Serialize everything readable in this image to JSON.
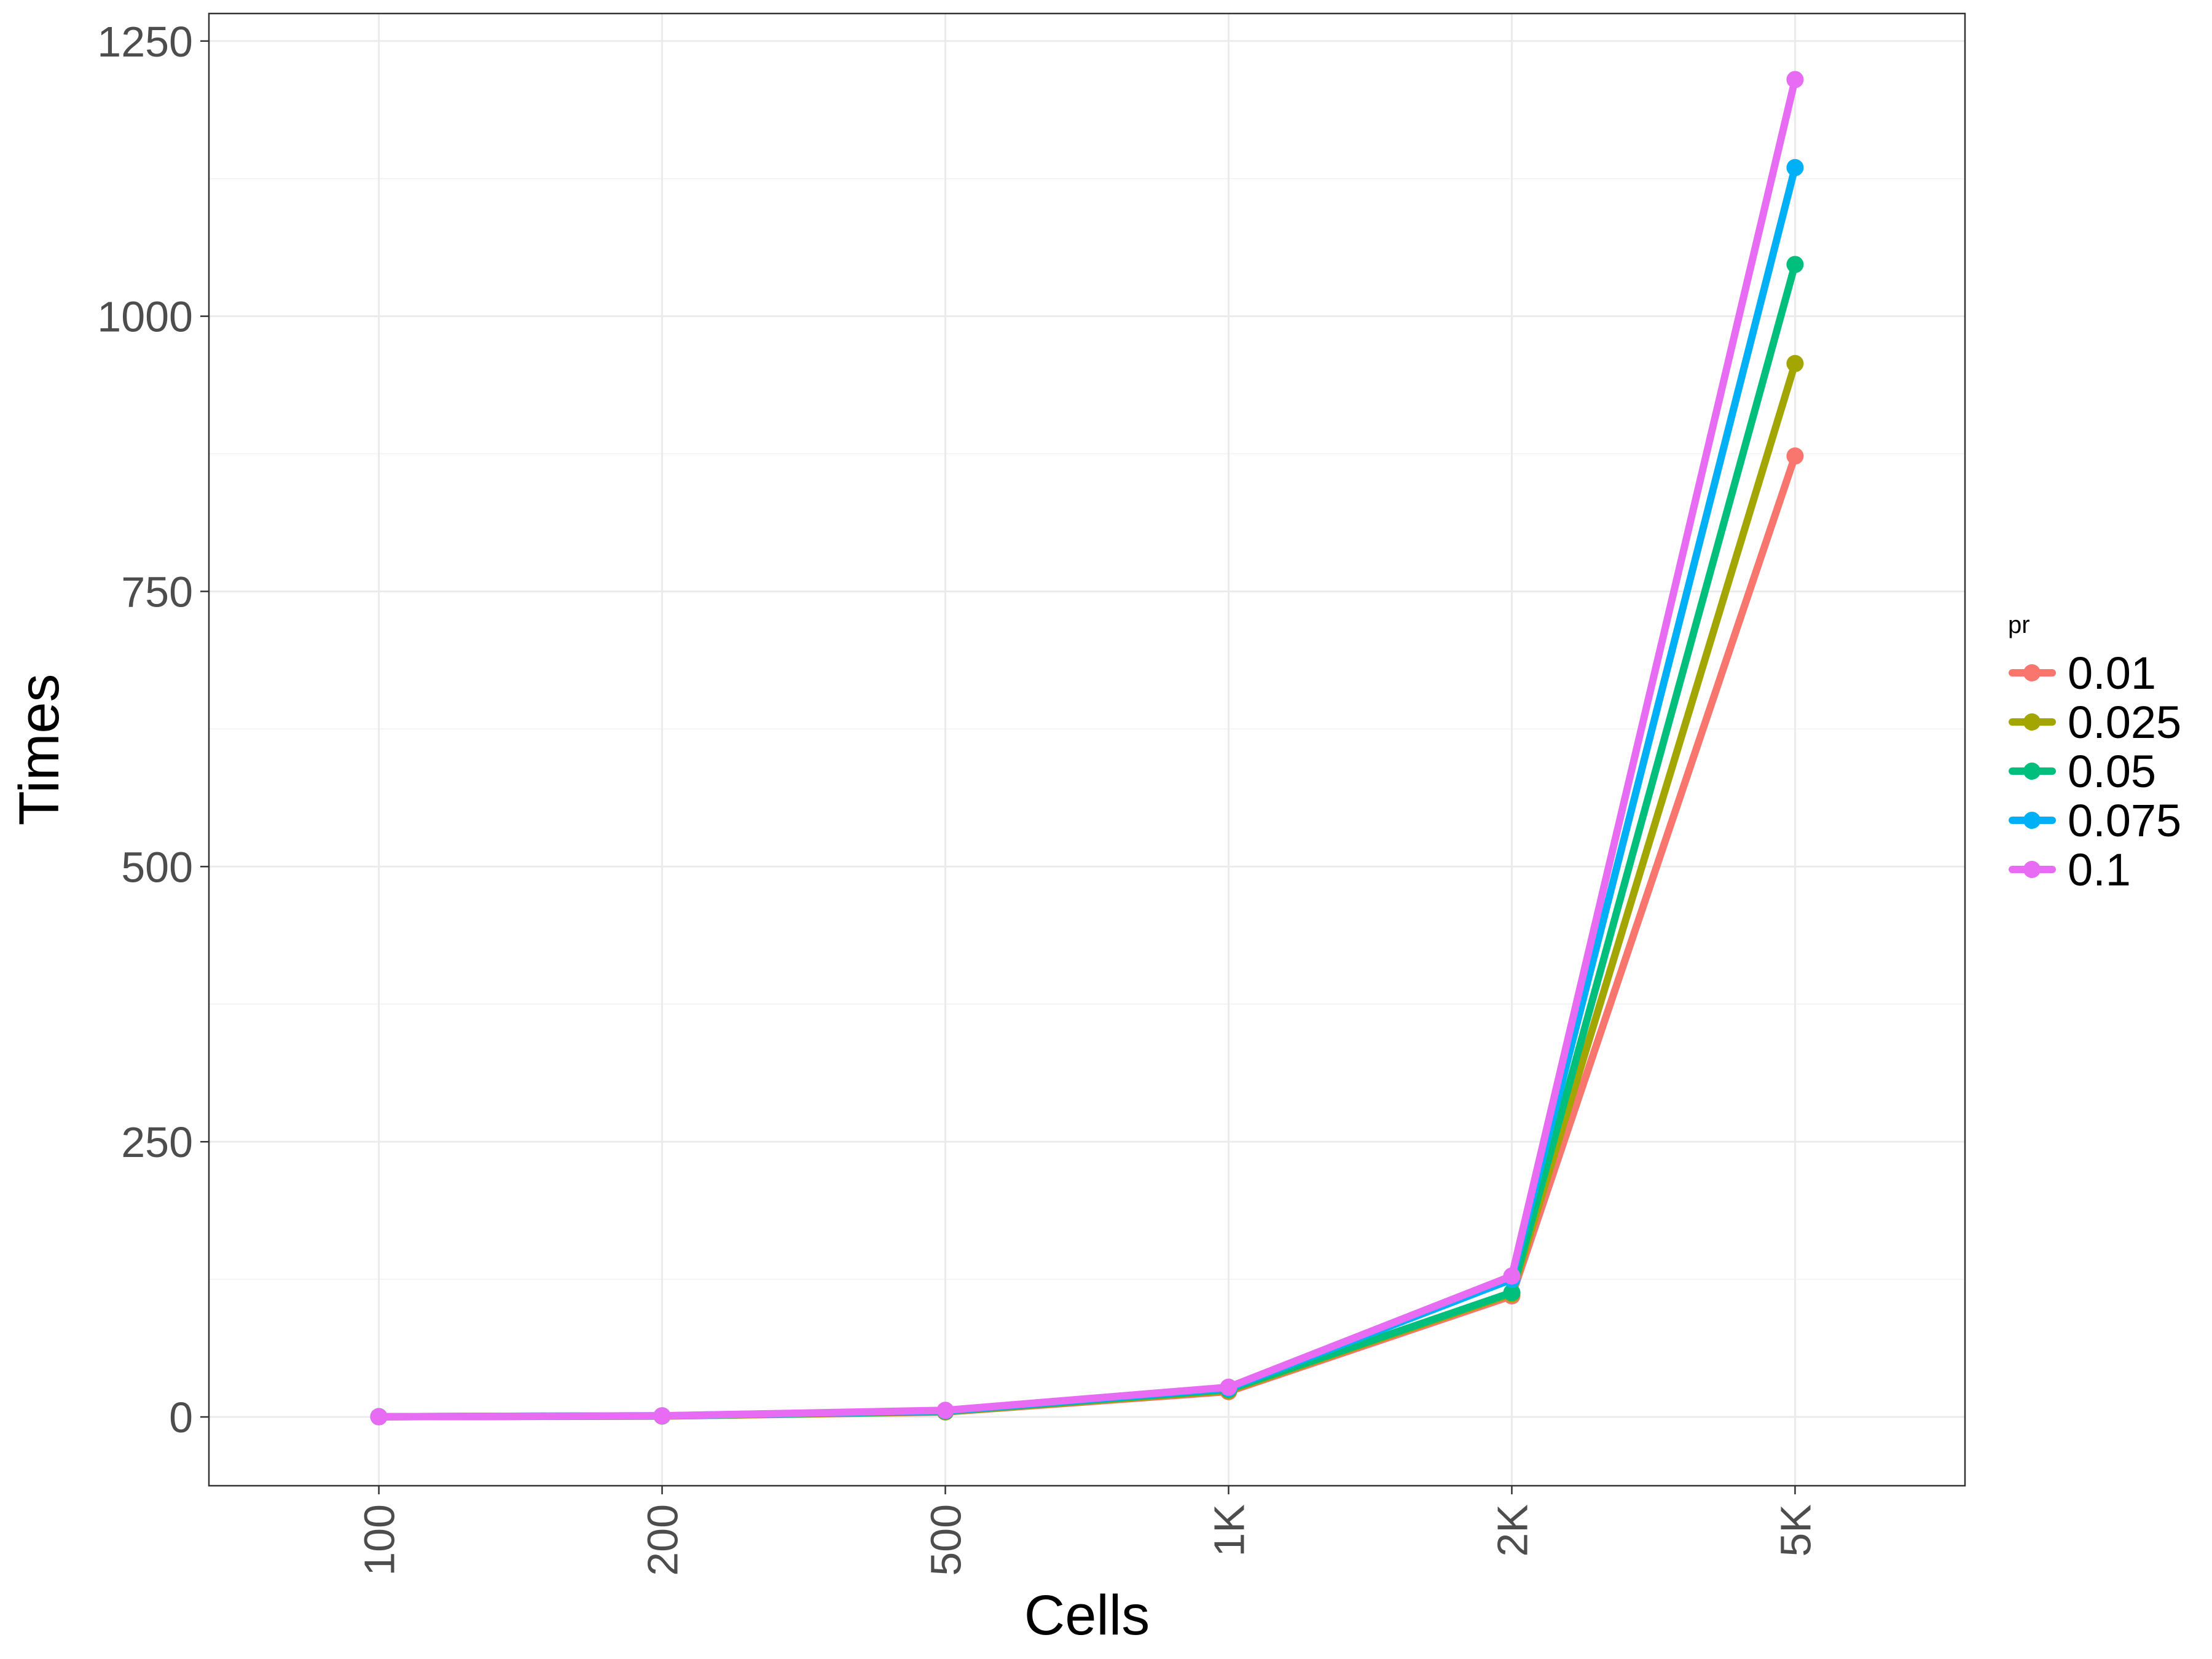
{
  "chart_data": {
    "type": "line",
    "title": "",
    "xlabel": "Cells",
    "ylabel": "Times",
    "categories": [
      "100",
      "200",
      "500",
      "1K",
      "2K",
      "5K"
    ],
    "ylim": [
      -62.5,
      1275
    ],
    "y_ticks": [
      0,
      250,
      500,
      750,
      1000,
      1250
    ],
    "grid": true,
    "legend": {
      "title": "pr",
      "position": "right"
    },
    "series": [
      {
        "name": "0.01",
        "color": "#F8766D",
        "values": [
          0.2,
          0.8,
          4.5,
          23,
          110,
          873
        ]
      },
      {
        "name": "0.025",
        "color": "#A3A500",
        "values": [
          0.2,
          0.8,
          4.8,
          24,
          112,
          957
        ]
      },
      {
        "name": "0.05",
        "color": "#00BF7D",
        "values": [
          0.2,
          0.9,
          5.2,
          25,
          113,
          1047
        ]
      },
      {
        "name": "0.075",
        "color": "#00B0F6",
        "values": [
          0.2,
          1.0,
          5.6,
          26,
          125,
          1135
        ]
      },
      {
        "name": "0.1",
        "color": "#E76BF3",
        "values": [
          0.2,
          1.0,
          6.0,
          27,
          128,
          1215
        ]
      }
    ]
  }
}
